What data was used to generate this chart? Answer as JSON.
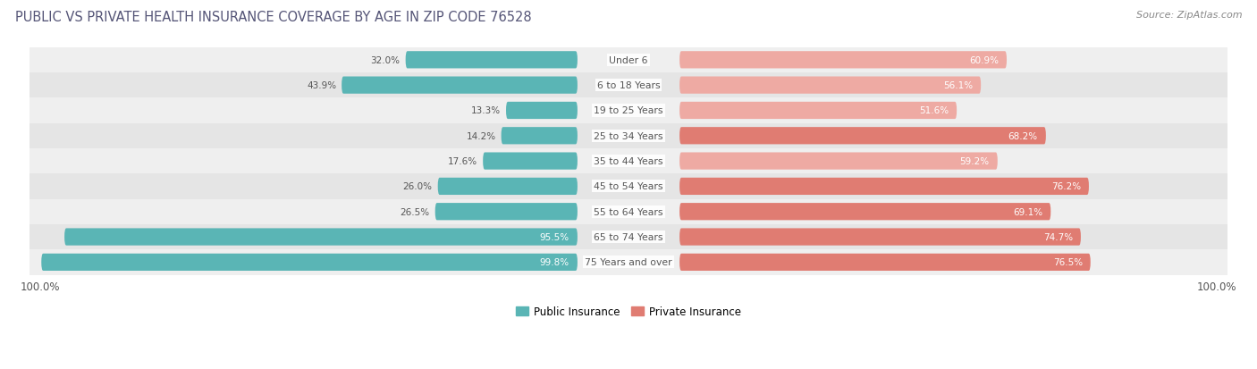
{
  "title": "PUBLIC VS PRIVATE HEALTH INSURANCE COVERAGE BY AGE IN ZIP CODE 76528",
  "source": "Source: ZipAtlas.com",
  "categories": [
    "Under 6",
    "6 to 18 Years",
    "19 to 25 Years",
    "25 to 34 Years",
    "35 to 44 Years",
    "45 to 54 Years",
    "55 to 64 Years",
    "65 to 74 Years",
    "75 Years and over"
  ],
  "public_values": [
    32.0,
    43.9,
    13.3,
    14.2,
    17.6,
    26.0,
    26.5,
    95.5,
    99.8
  ],
  "private_values": [
    60.9,
    56.1,
    51.6,
    68.2,
    59.2,
    76.2,
    69.1,
    74.7,
    76.5
  ],
  "public_color": "#5ab5b5",
  "private_color_dark": "#e07c72",
  "private_color_light": "#eeaaa3",
  "row_bg_color_odd": "#efefef",
  "row_bg_color_even": "#e5e5e5",
  "title_color": "#555577",
  "outside_label_color": "#555555",
  "inside_label_color": "#ffffff",
  "center_label_color": "#555555",
  "legend_public": "Public Insurance",
  "legend_private": "Private Insurance",
  "max_val": 100.0,
  "private_dark_threshold": 65.0
}
